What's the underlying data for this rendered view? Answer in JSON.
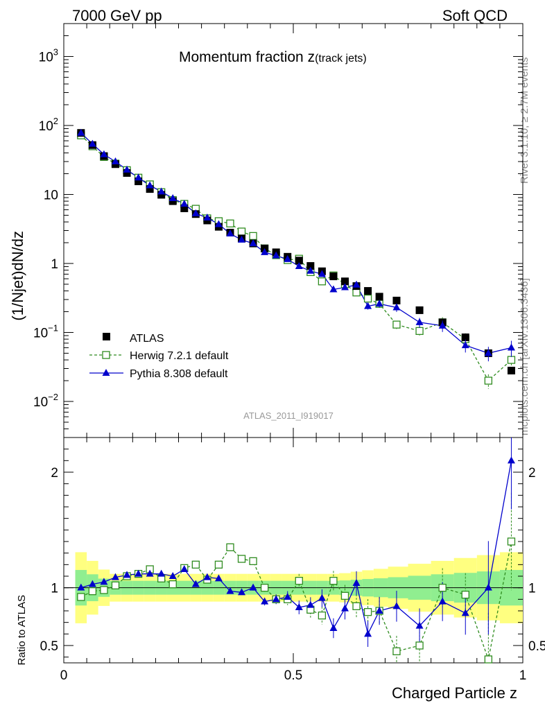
{
  "header": {
    "left": "7000 GeV pp",
    "right": "Soft QCD",
    "side_top": "Rivet 3.1.10, ≥ 2.7M events",
    "side_bottom": "mcplots.cern.ch [arXiv:1306.3436]"
  },
  "chart_data": {
    "type": "scatter",
    "title": "Momentum fraction z",
    "title_sub": "(track jets)",
    "watermark": "ATLAS_2011_I919017",
    "xlabel": "Charged Particle z",
    "ylabel": "(1/Njet)dN/dz",
    "ratio_ylabel": "Ratio to ATLAS",
    "xlim": [
      0,
      1
    ],
    "ylim": [
      0.003,
      3000
    ],
    "yscale": "log",
    "ratio_ylim": [
      0.35,
      2.3
    ],
    "xticks": [
      "0",
      "0.5",
      "1"
    ],
    "yticks": [
      "10^-2",
      "10^-1",
      "1",
      "10",
      "10^2",
      "10^3"
    ],
    "ratio_yticks": [
      "0.5",
      "1",
      "2"
    ],
    "legend_position": "bottom-left",
    "legend": [
      "ATLAS",
      "Herwig 7.2.1 default",
      "Pythia 8.308 default"
    ],
    "colors": {
      "atlas": "#000000",
      "herwig": "#2e8b1e",
      "pythia": "#0000cc",
      "band_inner": "#90ee90",
      "band_outer": "#ffff80"
    },
    "x": [
      0.0375,
      0.0625,
      0.0875,
      0.1125,
      0.1375,
      0.1625,
      0.1875,
      0.2125,
      0.2375,
      0.2625,
      0.2875,
      0.3125,
      0.3375,
      0.3625,
      0.3875,
      0.4125,
      0.4375,
      0.4625,
      0.4875,
      0.5125,
      0.5375,
      0.5625,
      0.5875,
      0.6125,
      0.6375,
      0.6625,
      0.6875,
      0.725,
      0.775,
      0.825,
      0.875,
      0.925,
      0.975
    ],
    "series": [
      {
        "name": "ATLAS",
        "marker": "square",
        "values": [
          78,
          52,
          36,
          27.5,
          20.5,
          15.5,
          12,
          9.9,
          8,
          6.3,
          5.2,
          4.2,
          3.4,
          2.8,
          2.3,
          1.95,
          1.65,
          1.45,
          1.25,
          1.1,
          0.92,
          0.77,
          0.65,
          0.55,
          0.47,
          0.4,
          0.33,
          0.29,
          0.21,
          0.14,
          0.085,
          0.05,
          0.028
        ]
      },
      {
        "name": "Herwig 7.2.1 default",
        "marker": "open-square",
        "values": [
          72,
          50,
          35,
          28,
          22.5,
          17.5,
          14,
          10.8,
          8.3,
          7.3,
          6.2,
          4.5,
          4.1,
          3.8,
          2.9,
          2.5,
          1.65,
          1.32,
          1.12,
          1.17,
          0.75,
          0.55,
          0.67,
          0.5,
          0.38,
          0.31,
          0.26,
          0.13,
          0.105,
          0.14,
          0.08,
          0.02,
          0.04
        ]
      },
      {
        "name": "Pythia 8.308 default",
        "marker": "triangle",
        "values": [
          78,
          54,
          38,
          30,
          22.8,
          17.5,
          13.5,
          11,
          8.8,
          7.3,
          5.3,
          4.6,
          3.7,
          2.7,
          2.2,
          1.95,
          1.45,
          1.3,
          1.15,
          0.91,
          0.78,
          0.7,
          0.42,
          0.45,
          0.49,
          0.24,
          0.26,
          0.23,
          0.14,
          0.125,
          0.065,
          0.05,
          0.06
        ]
      }
    ],
    "ratio": {
      "herwig": [
        0.92,
        0.97,
        0.98,
        1.02,
        1.1,
        1.12,
        1.16,
        1.08,
        1.03,
        1.17,
        1.2,
        1.07,
        1.2,
        1.35,
        1.25,
        1.23,
        1.0,
        0.9,
        0.9,
        1.06,
        0.81,
        0.76,
        1.06,
        0.93,
        0.84,
        0.79,
        0.8,
        0.45,
        0.5,
        1.0,
        0.94,
        0.38,
        1.4
      ],
      "pythia": [
        1.0,
        1.03,
        1.05,
        1.09,
        1.11,
        1.12,
        1.12,
        1.12,
        1.1,
        1.16,
        1.03,
        1.09,
        1.08,
        0.97,
        0.96,
        1.0,
        0.88,
        0.9,
        0.92,
        0.83,
        0.85,
        0.91,
        0.65,
        0.82,
        1.04,
        0.6,
        0.8,
        0.84,
        0.67,
        0.88,
        0.78,
        1.0,
        2.1
      ]
    }
  }
}
